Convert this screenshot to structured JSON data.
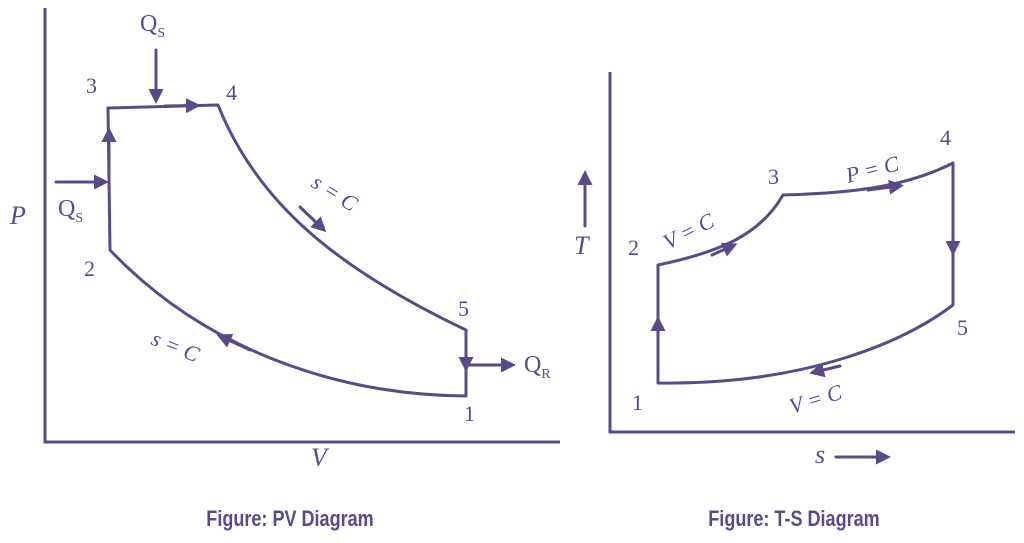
{
  "colors": {
    "ink": "#5a4a8a"
  },
  "pv_diagram": {
    "caption": "Figure: PV Diagram",
    "x_axis_label": "V",
    "y_axis_label": "P",
    "points": [
      "1",
      "2",
      "3",
      "4",
      "5"
    ],
    "heat_supplied_label": "Q",
    "heat_supplied_sub": "S",
    "heat_rejected_label": "Q",
    "heat_rejected_sub": "R",
    "process_compression": "s = C",
    "process_expansion": "s = C"
  },
  "ts_diagram": {
    "caption": "Figure: T-S Diagram",
    "x_axis_label": "s",
    "y_axis_label": "T",
    "points": [
      "1",
      "2",
      "3",
      "4",
      "5"
    ],
    "process_2_3": "V = C",
    "process_3_4": "P = C",
    "process_5_1": "V = C"
  }
}
